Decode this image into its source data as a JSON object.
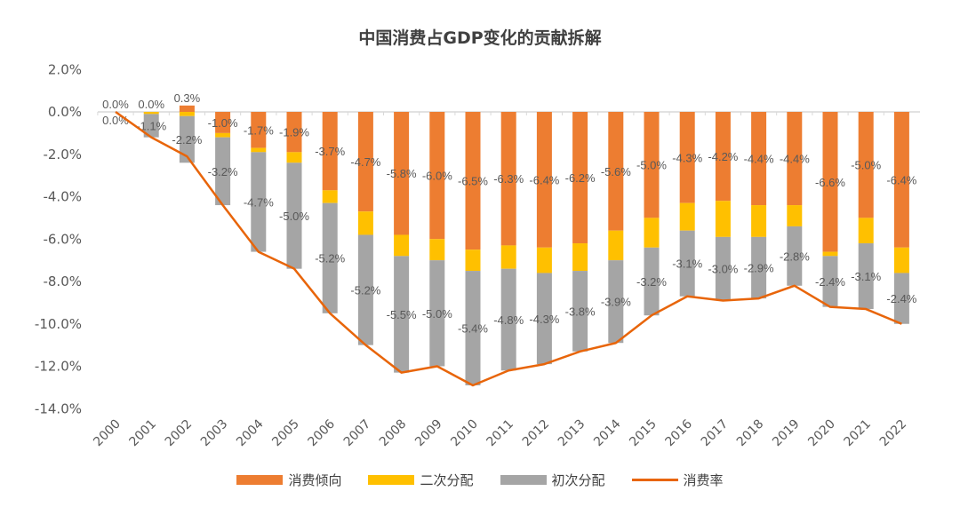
{
  "chart_data": {
    "type": "bar",
    "stacked": true,
    "title": "中国消费占GDP变化的贡献拆解",
    "categories": [
      "2000",
      "2001",
      "2002",
      "2003",
      "2004",
      "2005",
      "2006",
      "2007",
      "2008",
      "2009",
      "2010",
      "2011",
      "2012",
      "2013",
      "2014",
      "2015",
      "2016",
      "2017",
      "2018",
      "2019",
      "2020",
      "2021",
      "2022"
    ],
    "ylim": [
      -14,
      2
    ],
    "yticks": [
      "2.0%",
      "0.0%",
      "-2.0%",
      "-4.0%",
      "-6.0%",
      "-8.0%",
      "-10.0%",
      "-12.0%",
      "-14.0%"
    ],
    "ytick_values": [
      2,
      0,
      -2,
      -4,
      -6,
      -8,
      -10,
      -12,
      -14
    ],
    "grid": false,
    "legend_position": "bottom",
    "series": [
      {
        "name": "消费倾向",
        "type": "bar",
        "color": "#ED7D31",
        "labeled": true,
        "values": [
          0.0,
          0.0,
          0.3,
          -1.0,
          -1.7,
          -1.9,
          -3.7,
          -4.7,
          -5.8,
          -6.0,
          -6.5,
          -6.3,
          -6.4,
          -6.2,
          -5.6,
          -5.0,
          -4.3,
          -4.2,
          -4.4,
          -4.4,
          -6.6,
          -5.0,
          -6.4
        ]
      },
      {
        "name": "二次分配",
        "type": "bar",
        "color": "#FFC000",
        "labeled": false,
        "values": [
          0.0,
          -0.1,
          -0.2,
          -0.2,
          -0.2,
          -0.5,
          -0.6,
          -1.1,
          -1.0,
          -1.0,
          -1.0,
          -1.1,
          -1.2,
          -1.3,
          -1.4,
          -1.4,
          -1.3,
          -1.7,
          -1.5,
          -1.0,
          -0.2,
          -1.2,
          -1.2
        ]
      },
      {
        "name": "初次分配",
        "type": "bar",
        "color": "#A5A5A5",
        "labeled": true,
        "values": [
          0.0,
          -1.1,
          -2.2,
          -3.2,
          -4.7,
          -5.0,
          -5.2,
          -5.2,
          -5.5,
          -5.0,
          -5.4,
          -4.8,
          -4.3,
          -3.8,
          -3.9,
          -3.2,
          -3.1,
          -3.0,
          -2.9,
          -2.8,
          -2.4,
          -3.1,
          -2.4
        ]
      },
      {
        "name": "消费率",
        "type": "line",
        "color": "#E8650A",
        "values": [
          0.0,
          -1.2,
          -2.1,
          -4.4,
          -6.6,
          -7.4,
          -9.5,
          -11.0,
          -12.3,
          -12.0,
          -12.9,
          -12.2,
          -11.9,
          -11.3,
          -10.9,
          -9.6,
          -8.7,
          -8.9,
          -8.8,
          -8.2,
          -9.2,
          -9.3,
          -10.0
        ]
      }
    ]
  }
}
